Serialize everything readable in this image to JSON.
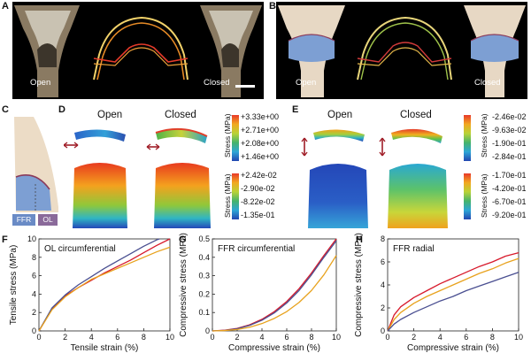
{
  "panels": {
    "A": {
      "label": "A",
      "left_text": "Open",
      "right_text": "Closed"
    },
    "B": {
      "label": "B",
      "left_text": "Open",
      "right_text": "Closed"
    },
    "C": {
      "label": "C",
      "legend": [
        "FFR",
        "OL"
      ]
    },
    "D": {
      "label": "D",
      "open": "Open",
      "closed": "Closed",
      "colorbar_top": {
        "title": "Stress (MPa)",
        "ticks": [
          "+3.33e+00",
          "+2.71e+00",
          "+2.08e+00",
          "+1.46e+00"
        ]
      },
      "colorbar_bottom": {
        "title": "Stress (MPa)",
        "ticks": [
          "+2.42e-02",
          "-2.90e-02",
          "-8.22e-02",
          "-1.35e-01"
        ]
      }
    },
    "E": {
      "label": "E",
      "open": "Open",
      "closed": "Closed",
      "colorbar_top": {
        "title": "Stress (MPa)",
        "ticks": [
          "-2.46e-02",
          "-9.63e-02",
          "-1.90e-01",
          "-2.84e-01"
        ]
      },
      "colorbar_bottom": {
        "title": "Stress (MPa)",
        "ticks": [
          "-1.70e-01",
          "-4.20e-01",
          "-6.70e-01",
          "-9.20e-01"
        ]
      }
    }
  },
  "colors": {
    "red": "#d7192b",
    "orange": "#e8a21d",
    "blue": "#4a4f91",
    "ffr": "#6a8bc6",
    "ol": "#8a6a9a",
    "panel_bg": "#000000"
  },
  "chart_data": [
    {
      "label": "F",
      "type": "line",
      "title": "OL circumferential",
      "xlabel": "Tensile strain (%)",
      "ylabel": "Tensile stress (MPa)",
      "xlim": [
        0,
        10
      ],
      "ylim": [
        0,
        10
      ],
      "xticks": [
        0,
        2,
        4,
        6,
        8,
        10
      ],
      "yticks": [
        0,
        2,
        4,
        6,
        8,
        10
      ],
      "series": [
        {
          "color": "#d7192b",
          "x": [
            0,
            1,
            2,
            3,
            4,
            5,
            6,
            7,
            8,
            9,
            10
          ],
          "y": [
            0,
            2.4,
            3.8,
            4.7,
            5.5,
            6.3,
            7.0,
            7.7,
            8.5,
            9.3,
            10.0
          ]
        },
        {
          "color": "#4a4f91",
          "x": [
            0,
            1,
            2,
            3,
            4,
            5,
            6,
            7,
            8,
            9,
            9.2
          ],
          "y": [
            0,
            2.5,
            3.9,
            5.0,
            5.9,
            6.8,
            7.6,
            8.4,
            9.2,
            9.9,
            10.0
          ]
        },
        {
          "color": "#e8a21d",
          "x": [
            0,
            1,
            2,
            3,
            4,
            5,
            6,
            7,
            8,
            9,
            10
          ],
          "y": [
            0,
            2.3,
            3.7,
            4.7,
            5.6,
            6.2,
            6.8,
            7.4,
            8.0,
            8.6,
            9.1
          ]
        }
      ]
    },
    {
      "label": "G",
      "type": "line",
      "title": "FFR circumferential",
      "xlabel": "Compressive strain (%)",
      "ylabel": "Compressive stress (MPa)",
      "xlim": [
        0,
        10
      ],
      "ylim": [
        0,
        0.5
      ],
      "xticks": [
        0,
        2,
        4,
        6,
        8,
        10
      ],
      "yticks": [
        0,
        0.1,
        0.2,
        0.3,
        0.4,
        0.5
      ],
      "series": [
        {
          "color": "#d7192b",
          "x": [
            0,
            1,
            2,
            3,
            4,
            5,
            6,
            7,
            8,
            9,
            10
          ],
          "y": [
            0,
            0.004,
            0.014,
            0.033,
            0.063,
            0.105,
            0.16,
            0.23,
            0.315,
            0.41,
            0.5
          ]
        },
        {
          "color": "#4a4f91",
          "x": [
            0,
            1,
            2,
            3,
            4,
            5,
            6,
            7,
            8,
            9,
            10
          ],
          "y": [
            0,
            0.003,
            0.012,
            0.03,
            0.058,
            0.098,
            0.152,
            0.22,
            0.305,
            0.4,
            0.49
          ]
        },
        {
          "color": "#e8a21d",
          "x": [
            0,
            1,
            2,
            3,
            4,
            5,
            6,
            7,
            8,
            9,
            10
          ],
          "y": [
            0,
            0.002,
            0.008,
            0.02,
            0.04,
            0.068,
            0.105,
            0.155,
            0.22,
            0.305,
            0.41
          ]
        }
      ]
    },
    {
      "label": "H",
      "type": "line",
      "title": "FFR radial",
      "xlabel": "Compressive strain (%)",
      "ylabel": "Compressive stress (MPa)",
      "xlim": [
        0,
        10
      ],
      "ylim": [
        0,
        8
      ],
      "xticks": [
        0,
        2,
        4,
        6,
        8,
        10
      ],
      "yticks": [
        0,
        2,
        4,
        6,
        8
      ],
      "series": [
        {
          "color": "#d7192b",
          "x": [
            0,
            0.5,
            1,
            2,
            3,
            4,
            5,
            6,
            7,
            8,
            9,
            10
          ],
          "y": [
            0,
            1.4,
            2.1,
            2.9,
            3.5,
            4.1,
            4.6,
            5.1,
            5.6,
            6.0,
            6.5,
            6.8
          ]
        },
        {
          "color": "#e8a21d",
          "x": [
            0,
            0.5,
            1,
            2,
            3,
            4,
            5,
            6,
            7,
            8,
            9,
            10
          ],
          "y": [
            0,
            1.0,
            1.6,
            2.4,
            3.0,
            3.5,
            4.0,
            4.5,
            5.0,
            5.4,
            5.9,
            6.3
          ]
        },
        {
          "color": "#4a4f91",
          "x": [
            0,
            0.5,
            1,
            2,
            3,
            4,
            5,
            6,
            7,
            8,
            9,
            10
          ],
          "y": [
            0,
            0.6,
            1.0,
            1.6,
            2.1,
            2.6,
            3.0,
            3.5,
            3.9,
            4.3,
            4.7,
            5.1
          ]
        }
      ]
    }
  ]
}
